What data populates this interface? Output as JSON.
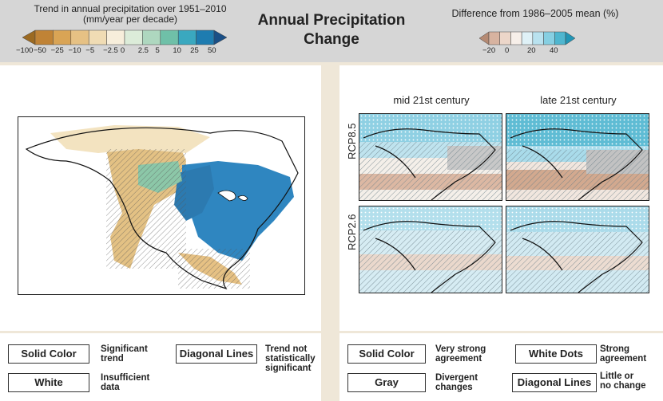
{
  "header": {
    "left_title_line1": "Trend in annual precipitation over 1951–2010",
    "left_title_line2": "(mm/year per decade)",
    "left_scale_ticks": [
      "−100",
      "−50",
      "−25",
      "−10",
      "−5",
      "−2.5",
      "0",
      "2.5",
      "5",
      "10",
      "25",
      "50"
    ],
    "left_scale_colors": [
      "#9c6a22",
      "#c08336",
      "#d9a455",
      "#e6c184",
      "#f0dcb4",
      "#f7eedb",
      "#dcecd9",
      "#aed7bf",
      "#6fc0a8",
      "#3aa8bf",
      "#1e7cb0",
      "#1a4f86"
    ],
    "main_title_line1": "Annual Precipitation",
    "main_title_line2": "Change",
    "right_title": "Difference from 1986–2005 mean (%)",
    "right_scale_ticks": [
      "−20",
      "0",
      "20",
      "40"
    ],
    "right_scale_colors": [
      "#b58a73",
      "#d7b3a0",
      "#ecd6c9",
      "#f7efe9",
      "#dff1f7",
      "#b9e2ef",
      "#86cfe2",
      "#4fb6cf",
      "#2295b5"
    ]
  },
  "right_panel": {
    "col_labels": [
      "mid 21st century",
      "late 21st century"
    ],
    "row_labels": [
      "RCP8.5",
      "RCP2.6"
    ]
  },
  "legend_left": {
    "items": [
      {
        "box": "Solid Color",
        "desc": [
          "Significant",
          "trend"
        ]
      },
      {
        "box": "White",
        "desc": [
          "Insufficient",
          "data"
        ]
      },
      {
        "box": "Diagonal Lines",
        "desc": [
          "Trend not",
          "statistically",
          "significant"
        ]
      }
    ]
  },
  "legend_right": {
    "items": [
      {
        "box": "Solid Color",
        "desc": [
          "Very strong",
          "agreement"
        ]
      },
      {
        "box": "Gray",
        "desc": [
          "Divergent",
          "changes"
        ]
      },
      {
        "box": "White Dots",
        "desc": [
          "Strong",
          "agreement"
        ]
      },
      {
        "box": "Diagonal Lines",
        "desc": [
          "Little or",
          "no change"
        ]
      }
    ]
  }
}
